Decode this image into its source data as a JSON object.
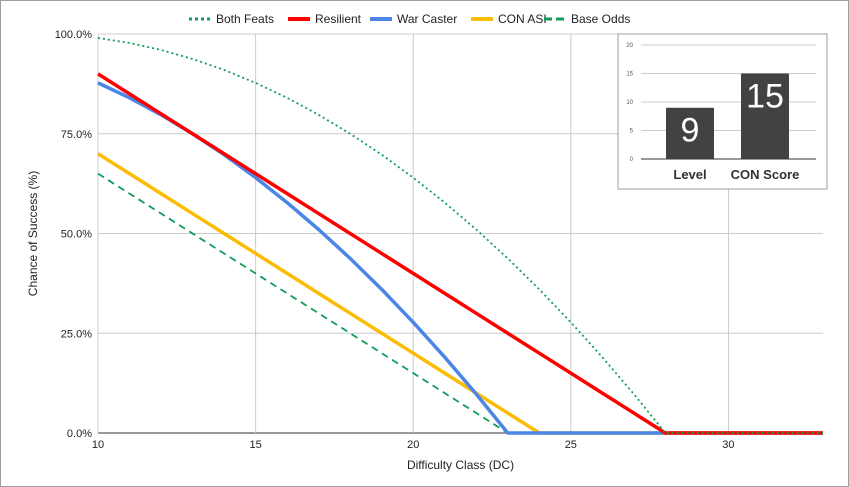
{
  "chart_data": [
    {
      "type": "line",
      "title": "",
      "xlabel": "Difficulty Class (DC)",
      "ylabel": "Chance of Success (%)",
      "xlim": [
        10,
        33
      ],
      "ylim": [
        0,
        100
      ],
      "x_ticks": [
        "10",
        "15",
        "20",
        "25",
        "30"
      ],
      "y_ticks": [
        "0.0%",
        "25.0%",
        "50.0%",
        "75.0%",
        "100.0%"
      ],
      "grid": true,
      "legend_position": "top",
      "x": [
        10,
        11,
        12,
        13,
        14,
        15,
        16,
        17,
        18,
        19,
        20,
        21,
        22,
        23,
        24,
        25,
        26,
        27,
        28,
        29,
        30,
        31,
        32,
        33
      ],
      "series": [
        {
          "name": "Both Feats",
          "color": "#0f9d58",
          "style": "dotted",
          "values": [
            99,
            97.75,
            96,
            93.75,
            91,
            87.75,
            84,
            79.75,
            75,
            69.75,
            64,
            57.75,
            51,
            43.75,
            36,
            27.75,
            19,
            9.75,
            0,
            0,
            0,
            0,
            0,
            0
          ]
        },
        {
          "name": "Resilient",
          "color": "#ff0000",
          "style": "solid",
          "values": [
            90,
            85,
            80,
            75,
            70,
            65,
            60,
            55,
            50,
            45,
            40,
            35,
            30,
            25,
            20,
            15,
            10,
            5,
            0,
            0,
            0,
            0,
            0,
            0
          ]
        },
        {
          "name": "War Caster",
          "color": "#4a86e8",
          "style": "solid",
          "values": [
            87.75,
            84,
            79.75,
            75,
            69.75,
            64,
            57.75,
            51,
            43.75,
            36,
            27.75,
            19,
            9.75,
            0,
            0,
            0,
            0,
            0,
            0,
            0,
            0,
            0,
            0,
            0
          ]
        },
        {
          "name": "CON ASI",
          "color": "#fbbc04",
          "style": "solid",
          "values": [
            70,
            65,
            60,
            55,
            50,
            45,
            40,
            35,
            30,
            25,
            20,
            15,
            10,
            5,
            0,
            0,
            0,
            0,
            0,
            0,
            0,
            0,
            0,
            0
          ]
        },
        {
          "name": "Base Odds",
          "color": "#0f9d58",
          "style": "dashed",
          "values": [
            65,
            60,
            55,
            50,
            45,
            40,
            35,
            30,
            25,
            20,
            15,
            10,
            5,
            0,
            0,
            0,
            0,
            0,
            0,
            0,
            0,
            0,
            0,
            0
          ]
        }
      ]
    },
    {
      "type": "bar",
      "categories": [
        "Level",
        "CON Score"
      ],
      "values": [
        9,
        15
      ],
      "data_labels": [
        "9",
        "15"
      ],
      "ylim": [
        0,
        20
      ],
      "y_ticks": [
        "0",
        "5",
        "10",
        "15",
        "20"
      ],
      "color": "#424242"
    }
  ]
}
